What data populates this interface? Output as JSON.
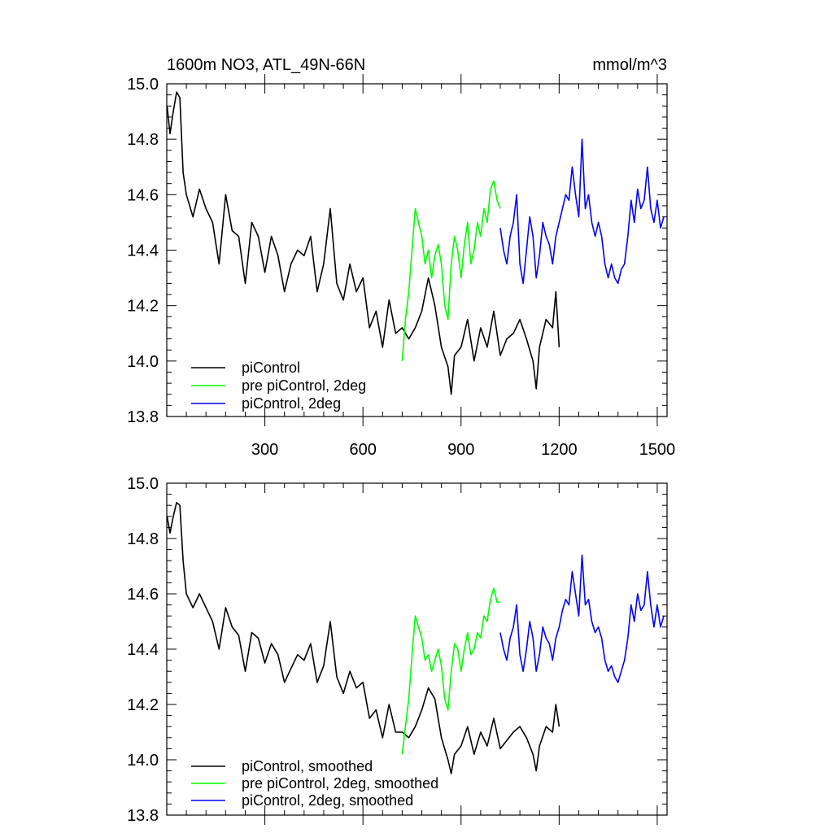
{
  "chart_data": [
    {
      "type": "line",
      "title": "1600m NO3, ATL_49N-66N",
      "units": "mmol/m^3",
      "xlim": [
        0,
        1530
      ],
      "ylim": [
        13.8,
        15.0
      ],
      "x_ticks": [
        300,
        600,
        900,
        1200,
        1500
      ],
      "x_tick_labels": [
        "300",
        "600",
        "900",
        "1200",
        "1500"
      ],
      "y_ticks": [
        13.8,
        14.0,
        14.2,
        14.4,
        14.6,
        14.8,
        15.0
      ],
      "y_tick_labels": [
        "13.8",
        "14.0",
        "14.2",
        "14.4",
        "14.6",
        "14.8",
        "15.0"
      ],
      "legend_position": "bottom-left",
      "series": [
        {
          "name": "piControl",
          "color": "#000000",
          "x": [
            1,
            10,
            20,
            30,
            40,
            50,
            60,
            80,
            100,
            120,
            140,
            160,
            180,
            200,
            220,
            240,
            260,
            280,
            300,
            320,
            340,
            360,
            380,
            400,
            420,
            440,
            460,
            480,
            500,
            520,
            540,
            560,
            580,
            600,
            620,
            640,
            660,
            680,
            700,
            720,
            740,
            760,
            780,
            800,
            820,
            840,
            860,
            870,
            880,
            900,
            920,
            940,
            960,
            980,
            1000,
            1020,
            1040,
            1060,
            1080,
            1100,
            1120,
            1130,
            1140,
            1160,
            1180,
            1190,
            1200
          ],
          "y": [
            14.92,
            14.82,
            14.9,
            14.97,
            14.95,
            14.68,
            14.6,
            14.52,
            14.62,
            14.55,
            14.5,
            14.35,
            14.6,
            14.47,
            14.45,
            14.28,
            14.5,
            14.45,
            14.32,
            14.45,
            14.38,
            14.25,
            14.35,
            14.4,
            14.38,
            14.45,
            14.25,
            14.35,
            14.55,
            14.28,
            14.22,
            14.35,
            14.25,
            14.3,
            14.12,
            14.18,
            14.05,
            14.22,
            14.1,
            14.12,
            14.08,
            14.12,
            14.18,
            14.3,
            14.2,
            14.05,
            13.98,
            13.88,
            14.02,
            14.05,
            14.15,
            14.0,
            14.12,
            14.05,
            14.18,
            14.02,
            14.08,
            14.1,
            14.15,
            14.08,
            14.0,
            13.9,
            14.05,
            14.15,
            14.12,
            14.25,
            14.05
          ]
        },
        {
          "name": "pre piControl, 2deg",
          "color": "#00ff00",
          "x": [
            720,
            730,
            740,
            750,
            760,
            770,
            780,
            790,
            800,
            810,
            820,
            830,
            840,
            850,
            860,
            870,
            880,
            890,
            900,
            910,
            920,
            930,
            940,
            950,
            960,
            970,
            980,
            990,
            1000,
            1010,
            1020
          ],
          "y": [
            14.0,
            14.15,
            14.25,
            14.4,
            14.55,
            14.5,
            14.45,
            14.35,
            14.4,
            14.3,
            14.38,
            14.42,
            14.35,
            14.2,
            14.15,
            14.35,
            14.45,
            14.4,
            14.3,
            14.42,
            14.5,
            14.35,
            14.4,
            14.5,
            14.45,
            14.55,
            14.5,
            14.62,
            14.65,
            14.58,
            14.55
          ]
        },
        {
          "name": "piControl, 2deg",
          "color": "#0000ff",
          "x": [
            1020,
            1030,
            1040,
            1050,
            1060,
            1070,
            1080,
            1090,
            1100,
            1110,
            1120,
            1130,
            1140,
            1150,
            1160,
            1170,
            1180,
            1190,
            1200,
            1210,
            1220,
            1230,
            1240,
            1250,
            1260,
            1270,
            1280,
            1290,
            1300,
            1310,
            1320,
            1330,
            1340,
            1350,
            1360,
            1370,
            1380,
            1390,
            1400,
            1410,
            1420,
            1430,
            1440,
            1450,
            1460,
            1470,
            1480,
            1490,
            1500,
            1510,
            1520
          ],
          "y": [
            14.48,
            14.4,
            14.35,
            14.45,
            14.5,
            14.6,
            14.35,
            14.28,
            14.4,
            14.52,
            14.45,
            14.3,
            14.38,
            14.5,
            14.45,
            14.42,
            14.35,
            14.45,
            14.5,
            14.55,
            14.6,
            14.58,
            14.7,
            14.6,
            14.52,
            14.8,
            14.55,
            14.6,
            14.5,
            14.45,
            14.5,
            14.45,
            14.35,
            14.3,
            14.35,
            14.3,
            14.28,
            14.33,
            14.35,
            14.45,
            14.58,
            14.5,
            14.62,
            14.55,
            14.58,
            14.7,
            14.55,
            14.5,
            14.58,
            14.48,
            14.52
          ]
        }
      ]
    },
    {
      "type": "line",
      "xlim": [
        0,
        1530
      ],
      "ylim": [
        13.8,
        15.0
      ],
      "y_ticks": [
        13.8,
        14.0,
        14.2,
        14.4,
        14.6,
        14.8,
        15.0
      ],
      "y_tick_labels": [
        "13.8",
        "14.0",
        "14.2",
        "14.4",
        "14.6",
        "14.8",
        "15.0"
      ],
      "legend_position": "bottom-left",
      "series": [
        {
          "name": "piControl, smoothed",
          "color": "#000000",
          "x": [
            1,
            10,
            20,
            30,
            40,
            50,
            60,
            80,
            100,
            120,
            140,
            160,
            180,
            200,
            220,
            240,
            260,
            280,
            300,
            320,
            340,
            360,
            380,
            400,
            420,
            440,
            460,
            480,
            500,
            520,
            540,
            560,
            580,
            600,
            620,
            640,
            660,
            680,
            700,
            720,
            740,
            760,
            780,
            800,
            820,
            840,
            860,
            870,
            880,
            900,
            920,
            940,
            960,
            980,
            1000,
            1020,
            1040,
            1060,
            1080,
            1100,
            1120,
            1130,
            1140,
            1160,
            1180,
            1190,
            1200
          ],
          "y": [
            14.88,
            14.82,
            14.88,
            14.93,
            14.92,
            14.72,
            14.6,
            14.55,
            14.6,
            14.55,
            14.5,
            14.4,
            14.55,
            14.48,
            14.45,
            14.32,
            14.46,
            14.44,
            14.35,
            14.42,
            14.38,
            14.28,
            14.33,
            14.38,
            14.36,
            14.42,
            14.28,
            14.34,
            14.5,
            14.3,
            14.24,
            14.32,
            14.26,
            14.28,
            14.15,
            14.18,
            14.08,
            14.2,
            14.1,
            14.1,
            14.08,
            14.12,
            14.18,
            14.26,
            14.22,
            14.08,
            14.0,
            13.95,
            14.02,
            14.05,
            14.12,
            14.02,
            14.1,
            14.05,
            14.15,
            14.04,
            14.07,
            14.1,
            14.12,
            14.08,
            14.02,
            13.96,
            14.05,
            14.12,
            14.1,
            14.2,
            14.12
          ]
        },
        {
          "name": "pre piControl, 2deg, smoothed",
          "color": "#00ff00",
          "x": [
            720,
            730,
            740,
            750,
            760,
            770,
            780,
            790,
            800,
            810,
            820,
            830,
            840,
            850,
            860,
            870,
            880,
            890,
            900,
            910,
            920,
            930,
            940,
            950,
            960,
            970,
            980,
            990,
            1000,
            1010,
            1020
          ],
          "y": [
            14.02,
            14.12,
            14.22,
            14.38,
            14.52,
            14.48,
            14.44,
            14.36,
            14.38,
            14.32,
            14.36,
            14.4,
            14.34,
            14.22,
            14.18,
            14.32,
            14.42,
            14.4,
            14.32,
            14.4,
            14.46,
            14.38,
            14.4,
            14.46,
            14.44,
            14.52,
            14.5,
            14.58,
            14.62,
            14.57,
            14.57
          ]
        },
        {
          "name": "piControl, 2deg, smoothed",
          "color": "#0000ff",
          "x": [
            1020,
            1030,
            1040,
            1050,
            1060,
            1070,
            1080,
            1090,
            1100,
            1110,
            1120,
            1130,
            1140,
            1150,
            1160,
            1170,
            1180,
            1190,
            1200,
            1210,
            1220,
            1230,
            1240,
            1250,
            1260,
            1270,
            1280,
            1290,
            1300,
            1310,
            1320,
            1330,
            1340,
            1350,
            1360,
            1370,
            1380,
            1390,
            1400,
            1410,
            1420,
            1430,
            1440,
            1450,
            1460,
            1470,
            1480,
            1490,
            1500,
            1510,
            1520
          ],
          "y": [
            14.46,
            14.4,
            14.36,
            14.44,
            14.48,
            14.56,
            14.38,
            14.32,
            14.4,
            14.5,
            14.44,
            14.32,
            14.38,
            14.48,
            14.44,
            14.42,
            14.36,
            14.44,
            14.48,
            14.54,
            14.58,
            14.56,
            14.68,
            14.6,
            14.52,
            14.74,
            14.56,
            14.58,
            14.5,
            14.46,
            14.48,
            14.44,
            14.36,
            14.32,
            14.34,
            14.3,
            14.28,
            14.32,
            14.36,
            14.44,
            14.56,
            14.5,
            14.6,
            14.54,
            14.56,
            14.68,
            14.56,
            14.48,
            14.56,
            14.48,
            14.52
          ]
        }
      ]
    }
  ]
}
